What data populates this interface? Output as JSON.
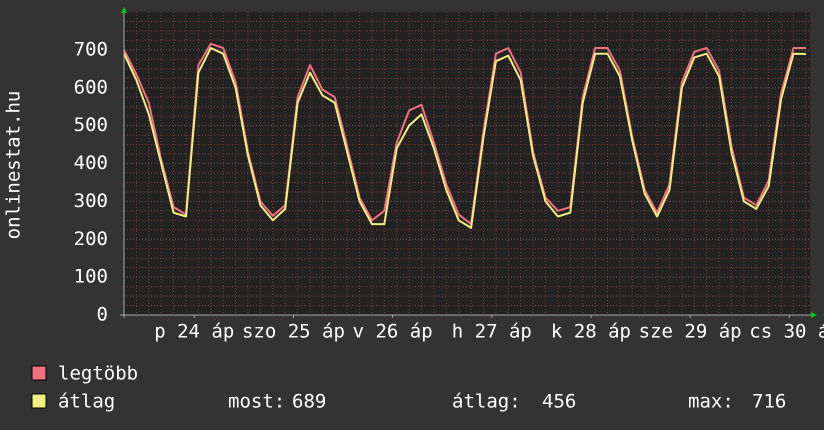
{
  "chart_data": {
    "type": "line",
    "y_label": "onlinestat.hu",
    "x": [
      0,
      3,
      6,
      9,
      12,
      15,
      18,
      21,
      24,
      27,
      30,
      33,
      36,
      39,
      42,
      45,
      48,
      51,
      54,
      57,
      60,
      63,
      66,
      69,
      72,
      75,
      78,
      81,
      84,
      87,
      90,
      93,
      96,
      99,
      102,
      105,
      108,
      111,
      114,
      117,
      120,
      123,
      126,
      129,
      132,
      135,
      138,
      141,
      144,
      147,
      150,
      153,
      156,
      159,
      162,
      165
    ],
    "xlim": [
      0,
      166
    ],
    "xticks": [
      {
        "value": 17,
        "label": "p 24 áp"
      },
      {
        "value": 41,
        "label": "szo 25 áp"
      },
      {
        "value": 65,
        "label": "v 26 áp"
      },
      {
        "value": 89,
        "label": "h 27 áp"
      },
      {
        "value": 113,
        "label": "k 28 áp"
      },
      {
        "value": 137,
        "label": "sze 29 áp"
      },
      {
        "value": 161,
        "label": "cs 30 á"
      }
    ],
    "ylim": [
      0,
      800
    ],
    "yticks": [
      0,
      100,
      200,
      300,
      400,
      500,
      600,
      700
    ],
    "grid": true,
    "series": [
      {
        "name": "legtöbb",
        "color": "#f07080",
        "values": [
          700,
          635,
          560,
          410,
          285,
          265,
          660,
          716,
          705,
          615,
          430,
          300,
          262,
          290,
          575,
          660,
          595,
          575,
          445,
          310,
          250,
          275,
          455,
          540,
          555,
          455,
          345,
          265,
          240,
          485,
          690,
          705,
          640,
          430,
          310,
          275,
          285,
          575,
          705,
          705,
          645,
          470,
          330,
          270,
          345,
          615,
          695,
          705,
          645,
          445,
          310,
          290,
          355,
          585,
          705,
          705
        ]
      },
      {
        "name": "átlag",
        "color": "#f0f080",
        "values": [
          690,
          620,
          530,
          400,
          270,
          260,
          640,
          705,
          690,
          600,
          420,
          290,
          250,
          280,
          560,
          640,
          580,
          560,
          430,
          300,
          240,
          240,
          440,
          500,
          530,
          440,
          330,
          250,
          230,
          470,
          670,
          685,
          620,
          420,
          300,
          260,
          270,
          560,
          690,
          690,
          630,
          460,
          320,
          260,
          330,
          600,
          680,
          690,
          630,
          430,
          300,
          280,
          340,
          570,
          690,
          689
        ]
      }
    ],
    "stats": [
      {
        "label": "most:",
        "value": 689
      },
      {
        "label": "átlag:",
        "value": 456
      },
      {
        "label": "max:",
        "value": 716
      }
    ]
  }
}
